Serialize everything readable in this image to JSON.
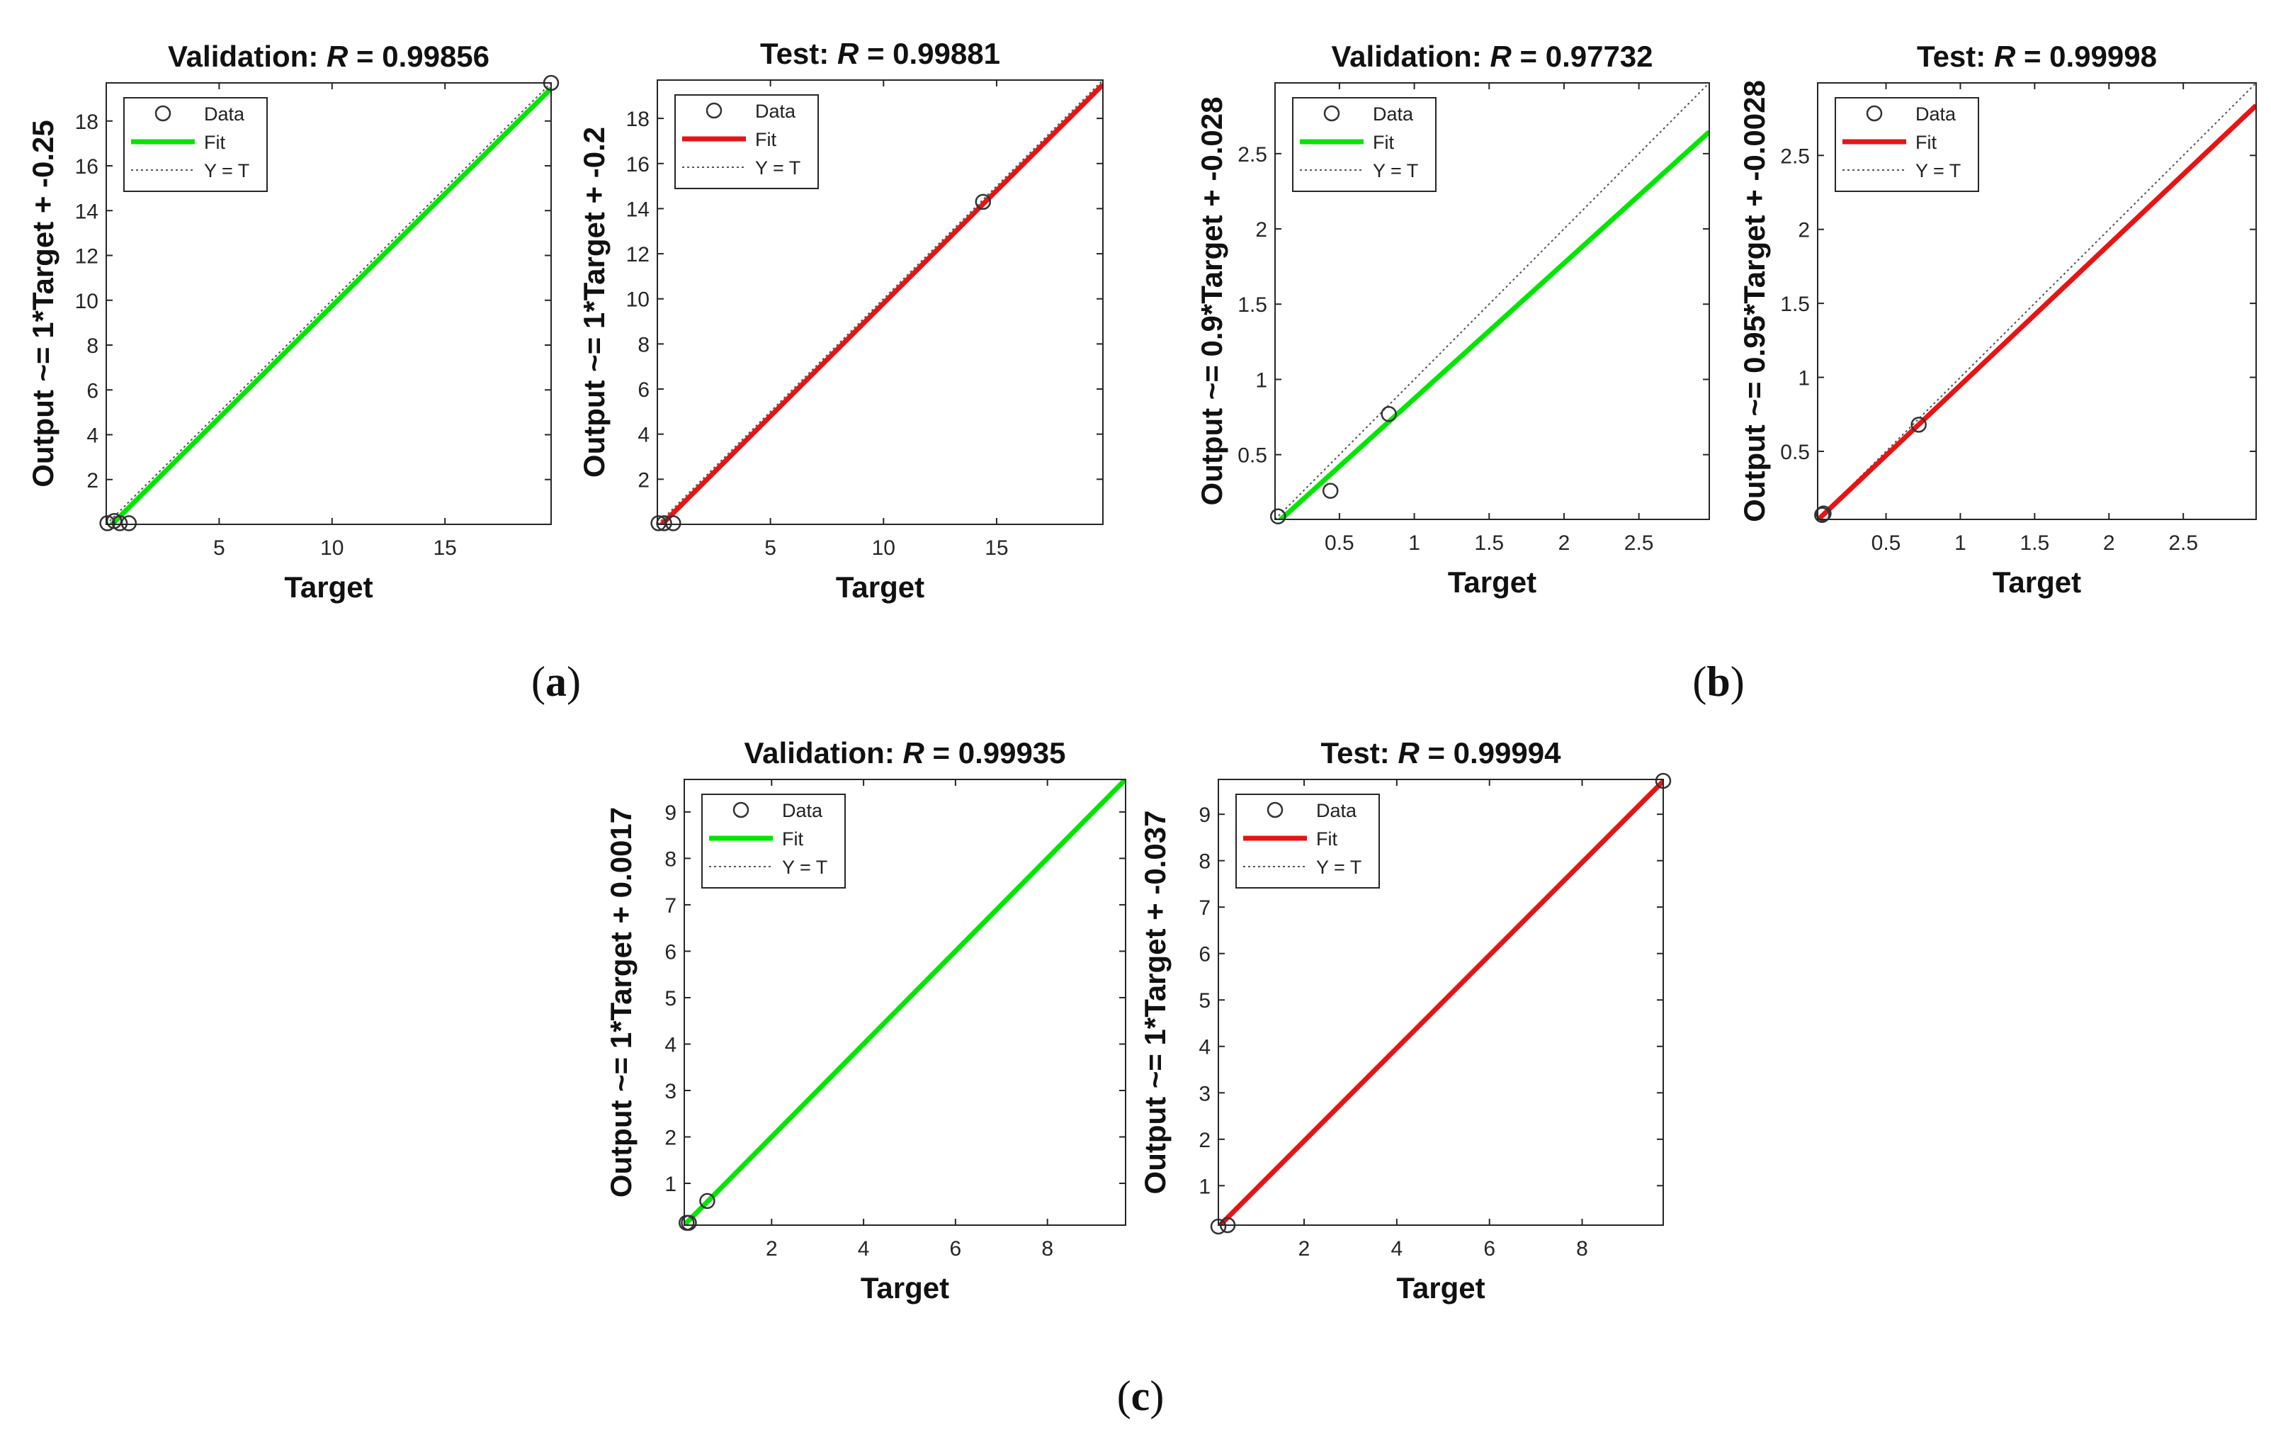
{
  "colors": {
    "validation_fit": "#00e600",
    "test_fit": "#e61414",
    "identity_line": "#555555",
    "axes": "#262626",
    "marker": "#333333"
  },
  "legend_labels": {
    "data": "Data",
    "fit": "Fit",
    "identity": "Y = T"
  },
  "panel_labels": [
    "(a)",
    "(b)",
    "(c)"
  ],
  "chart_data": [
    {
      "id": "a-validation",
      "panel": "a",
      "type": "scatter",
      "title_prefix": "Validation: ",
      "title_var": "R",
      "title_value": " = 0.99856",
      "xlabel": "Target",
      "ylabel": "Output ~= 1*Target + -0.25",
      "xlim": [
        0,
        19.7
      ],
      "ylim": [
        0,
        19.7
      ],
      "xticks": [
        5,
        10,
        15
      ],
      "xtick_labels": [
        "5",
        "10",
        "15"
      ],
      "yticks": [
        2,
        4,
        6,
        8,
        10,
        12,
        14,
        16,
        18
      ],
      "ytick_labels": [
        "2",
        "4",
        "6",
        "8",
        "10",
        "12",
        "14",
        "16",
        "18"
      ],
      "fit": {
        "slope": 1.0,
        "intercept": -0.25,
        "color_key": "validation_fit"
      },
      "points": [
        [
          0.05,
          0.05
        ],
        [
          0.35,
          0.15
        ],
        [
          0.6,
          0.05
        ],
        [
          1.0,
          0.05
        ],
        [
          19.7,
          19.7
        ]
      ]
    },
    {
      "id": "a-test",
      "panel": "a",
      "type": "scatter",
      "title_prefix": "Test: ",
      "title_var": "R",
      "title_value": " = 0.99881",
      "xlabel": "Target",
      "ylabel": "Output ~= 1*Target + -0.2",
      "xlim": [
        0,
        19.7
      ],
      "ylim": [
        0,
        19.7
      ],
      "xticks": [
        5,
        10,
        15
      ],
      "xtick_labels": [
        "5",
        "10",
        "15"
      ],
      "yticks": [
        2,
        4,
        6,
        8,
        10,
        12,
        14,
        16,
        18
      ],
      "ytick_labels": [
        "2",
        "4",
        "6",
        "8",
        "10",
        "12",
        "14",
        "16",
        "18"
      ],
      "fit": {
        "slope": 1.0,
        "intercept": -0.2,
        "color_key": "test_fit"
      },
      "points": [
        [
          0.05,
          0.05
        ],
        [
          0.3,
          0.05
        ],
        [
          0.7,
          0.05
        ],
        [
          14.4,
          14.3
        ]
      ]
    },
    {
      "id": "b-validation",
      "panel": "b",
      "type": "scatter",
      "title_prefix": "Validation: ",
      "title_var": "R",
      "title_value": " = 0.97732",
      "xlabel": "Target",
      "ylabel": "Output ~= 0.9*Target + -0.028",
      "xlim": [
        0.07,
        2.97
      ],
      "ylim": [
        0.07,
        2.97
      ],
      "xticks": [
        0.5,
        1,
        1.5,
        2,
        2.5
      ],
      "xtick_labels": [
        "0.5",
        "1",
        "1.5",
        "2",
        "2.5"
      ],
      "yticks": [
        0.5,
        1,
        1.5,
        2,
        2.5
      ],
      "ytick_labels": [
        "0.5",
        "1",
        "1.5",
        "2",
        "2.5"
      ],
      "fit": {
        "slope": 0.9,
        "intercept": -0.028,
        "color_key": "validation_fit"
      },
      "points": [
        [
          0.09,
          0.09
        ],
        [
          0.44,
          0.26
        ],
        [
          0.83,
          0.77
        ]
      ]
    },
    {
      "id": "b-test",
      "panel": "b",
      "type": "scatter",
      "title_prefix": "Test: ",
      "title_var": "R",
      "title_value": " = 0.99998",
      "xlabel": "Target",
      "ylabel": "Output ~= 0.95*Target + -0.0028",
      "xlim": [
        0.04,
        2.99
      ],
      "ylim": [
        0.04,
        2.99
      ],
      "xticks": [
        0.5,
        1,
        1.5,
        2,
        2.5
      ],
      "xtick_labels": [
        "0.5",
        "1",
        "1.5",
        "2",
        "2.5"
      ],
      "yticks": [
        0.5,
        1,
        1.5,
        2,
        2.5
      ],
      "ytick_labels": [
        "0.5",
        "1",
        "1.5",
        "2",
        "2.5"
      ],
      "fit": {
        "slope": 0.95,
        "intercept": -0.0028,
        "color_key": "test_fit"
      },
      "points": [
        [
          0.07,
          0.07
        ],
        [
          0.08,
          0.08
        ],
        [
          0.72,
          0.68
        ]
      ]
    },
    {
      "id": "c-validation",
      "panel": "c",
      "type": "scatter",
      "title_prefix": "Validation: ",
      "title_var": "R",
      "title_value": " = 0.99935",
      "xlabel": "Target",
      "ylabel": "Output ~= 1*Target + 0.0017",
      "xlim": [
        0.1,
        9.7
      ],
      "ylim": [
        0.1,
        9.7
      ],
      "xticks": [
        2,
        4,
        6,
        8
      ],
      "xtick_labels": [
        "2",
        "4",
        "6",
        "8"
      ],
      "yticks": [
        1,
        2,
        3,
        4,
        5,
        6,
        7,
        8,
        9
      ],
      "ytick_labels": [
        "1",
        "2",
        "3",
        "4",
        "5",
        "6",
        "7",
        "8",
        "9"
      ],
      "fit": {
        "slope": 1.0,
        "intercept": 0.0017,
        "color_key": "validation_fit"
      },
      "points": [
        [
          0.15,
          0.15
        ],
        [
          0.2,
          0.15
        ],
        [
          0.6,
          0.62
        ]
      ]
    },
    {
      "id": "c-test",
      "panel": "c",
      "type": "scatter",
      "title_prefix": "Test: ",
      "title_var": "R",
      "title_value": " = 0.99994",
      "xlabel": "Target",
      "ylabel": "Output ~= 1*Target + -0.037",
      "xlim": [
        0.15,
        9.75
      ],
      "ylim": [
        0.15,
        9.75
      ],
      "xticks": [
        2,
        4,
        6,
        8
      ],
      "xtick_labels": [
        "2",
        "4",
        "6",
        "8"
      ],
      "yticks": [
        1,
        2,
        3,
        4,
        5,
        6,
        7,
        8,
        9
      ],
      "ytick_labels": [
        "1",
        "2",
        "3",
        "4",
        "5",
        "6",
        "7",
        "8",
        "9"
      ],
      "fit": {
        "slope": 1.0,
        "intercept": -0.037,
        "color_key": "test_fit"
      },
      "points": [
        [
          0.15,
          0.12
        ],
        [
          0.35,
          0.15
        ],
        [
          9.75,
          9.72
        ]
      ]
    }
  ]
}
